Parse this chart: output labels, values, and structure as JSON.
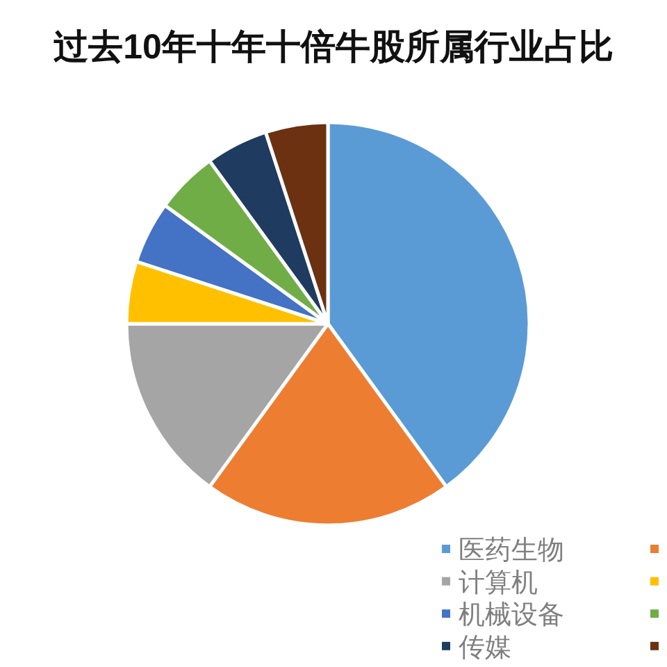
{
  "chart_data": {
    "type": "pie",
    "title": "过去10年十年十倍牛股所属行业占比",
    "categories": [
      "医药生物",
      null,
      "计算机",
      null,
      "机械设备",
      null,
      "传媒",
      null
    ],
    "values": [
      40,
      20,
      15,
      5,
      5,
      5,
      5,
      5
    ],
    "colors": [
      "#5b9bd5",
      "#ed7d31",
      "#a5a5a5",
      "#ffc000",
      "#4472c4",
      "#70ad47",
      "#1f3b60",
      "#6b3110"
    ],
    "legend": "bottom right"
  }
}
